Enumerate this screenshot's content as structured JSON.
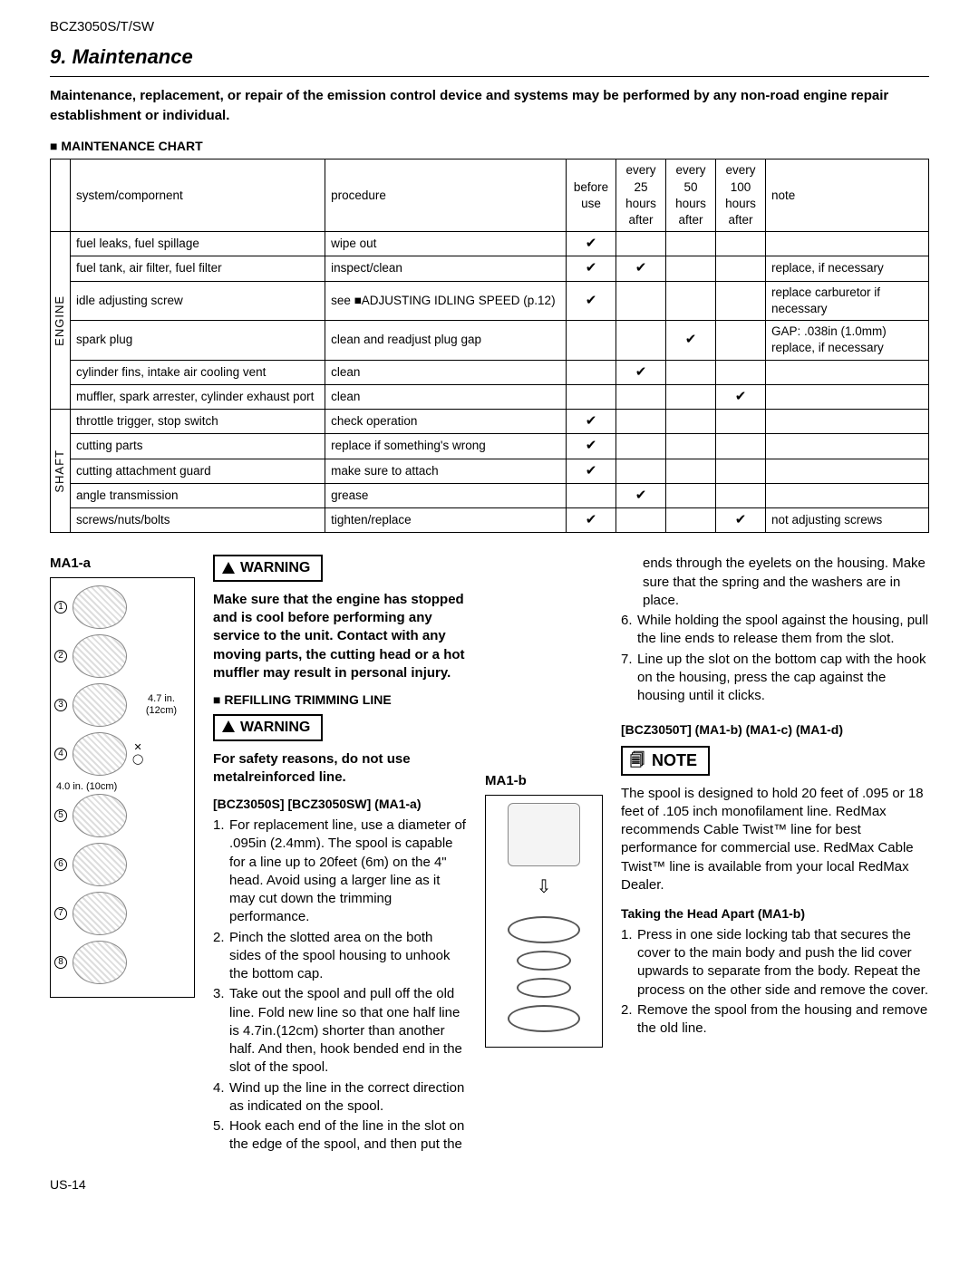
{
  "model": "BCZ3050S/T/SW",
  "section_title": "9. Maintenance",
  "intro": "Maintenance, replacement, or repair of the emission control device and systems may be performed by any non-road engine repair establishment or individual.",
  "chart_title": "■ MAINTENANCE CHART",
  "headers": {
    "system": "system/compornent",
    "procedure": "procedure",
    "before": "before use",
    "h25": "every 25 hours after",
    "h50": "every 50 hours after",
    "h100": "every 100 hours after",
    "note": "note"
  },
  "cat_engine": "ENGINE",
  "cat_shaft": "SHAFT",
  "rows_engine": [
    {
      "sys": "fuel leaks, fuel spillage",
      "proc": "wipe out",
      "b": "✔",
      "c25": "",
      "c50": "",
      "c100": "",
      "note": ""
    },
    {
      "sys": "fuel tank, air filter, fuel filter",
      "proc": "inspect/clean",
      "b": "✔",
      "c25": "✔",
      "c50": "",
      "c100": "",
      "note": "replace, if necessary"
    },
    {
      "sys": "idle adjusting screw",
      "proc": "see ■ADJUSTING IDLING SPEED (p.12)",
      "b": "✔",
      "c25": "",
      "c50": "",
      "c100": "",
      "note": "replace carburetor if necessary"
    },
    {
      "sys": "spark plug",
      "proc": "clean and readjust plug gap",
      "b": "",
      "c25": "",
      "c50": "✔",
      "c100": "",
      "note": "GAP: .038in (1.0mm) replace, if necessary"
    },
    {
      "sys": "cylinder fins, intake air cooling vent",
      "proc": "clean",
      "b": "",
      "c25": "✔",
      "c50": "",
      "c100": "",
      "note": ""
    },
    {
      "sys": "muffler, spark arrester, cylinder exhaust port",
      "proc": "clean",
      "b": "",
      "c25": "",
      "c50": "",
      "c100": "✔",
      "note": ""
    }
  ],
  "rows_shaft": [
    {
      "sys": "throttle trigger, stop switch",
      "proc": "check operation",
      "b": "✔",
      "c25": "",
      "c50": "",
      "c100": "",
      "note": ""
    },
    {
      "sys": "cutting parts",
      "proc": "replace if something's wrong",
      "b": "✔",
      "c25": "",
      "c50": "",
      "c100": "",
      "note": ""
    },
    {
      "sys": "cutting attachment guard",
      "proc": "make sure to attach",
      "b": "✔",
      "c25": "",
      "c50": "",
      "c100": "",
      "note": ""
    },
    {
      "sys": "angle transmission",
      "proc": "grease",
      "b": "",
      "c25": "✔",
      "c50": "",
      "c100": "",
      "note": ""
    },
    {
      "sys": "screws/nuts/bolts",
      "proc": "tighten/replace",
      "b": "✔",
      "c25": "",
      "c50": "",
      "c100": "✔",
      "note": "not adjusting screws"
    }
  ],
  "ma1a_label": "MA1-a",
  "ma1a_dim1": "4.7 in. (12cm)",
  "ma1a_dim2": "4.0 in. (10cm)",
  "warning_label": "WARNING",
  "warning1": "Make sure that the engine has stopped and is cool before performing any service to the unit.  Contact with any moving parts, the cutting head or a hot muffler may result in personal injury.",
  "refill_title": "■ REFILLING TRIMMING LINE",
  "warning2": "For safety reasons, do not use metalreinforced line.",
  "model_a_head": "[BCZ3050S] [BCZ3050SW] (MA1-a)",
  "steps_a": [
    "For replacement line, use a diameter of .095in (2.4mm). The spool is capable for a line up to 20feet (6m) on the 4\" head. Avoid using a larger line as it may cut down the trimming performance.",
    "Pinch the slotted area on the both sides of the spool housing to unhook the bottom cap.",
    "Take out the spool and pull off the old line. Fold new line so that one half line is 4.7in.(12cm) shorter than another half. And then, hook bended end in the slot of the spool.",
    "Wind up the line in the correct direction as indicated on the spool.",
    "Hook each end of the line in the slot on the edge of the spool, and then put the"
  ],
  "cont_5": "ends through the eyelets on the housing. Make sure that the spring and the washers are in place.",
  "step6": "While holding the spool against the housing, pull the line ends to release them from the slot.",
  "step7": "Line up the slot on the bottom cap with the hook on the housing, press the cap against the housing until it clicks.",
  "ma1b_label": "MA1-b",
  "model_b_head": "[BCZ3050T] (MA1-b) (MA1-c) (MA1-d)",
  "note_label": "NOTE",
  "note_text": "The spool is designed to hold 20 feet of .095 or 18 feet of .105 inch monofilament line.  RedMax recommends Cable Twist™ line for best performance for commercial use. RedMax Cable Twist™ line is available from your local RedMax Dealer.",
  "apart_head": "Taking the Head Apart (MA1-b)",
  "apart_steps": [
    "Press in one side locking tab that secures the cover to the main body and push the lid cover upwards to separate from the body.  Repeat the process on the other side and remove the cover.",
    "Remove the spool from the housing and remove the old line."
  ],
  "page_num": "US-14"
}
